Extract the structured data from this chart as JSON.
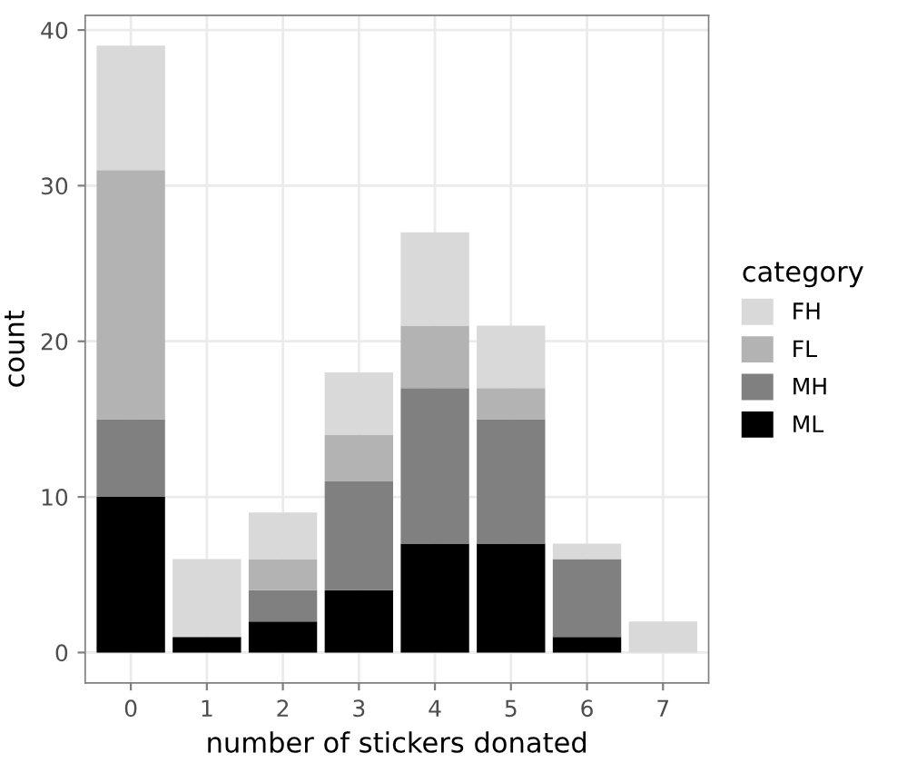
{
  "chart_data": {
    "type": "bar",
    "stacked": true,
    "xlabel": "number of stickers donated",
    "ylabel": "count",
    "legend_title": "category",
    "categories": [
      "0",
      "1",
      "2",
      "3",
      "4",
      "5",
      "6",
      "7"
    ],
    "series": [
      {
        "name": "ML",
        "color": "#000000",
        "values": [
          10,
          1,
          2,
          4,
          7,
          7,
          1,
          0
        ]
      },
      {
        "name": "MH",
        "color": "#808080",
        "values": [
          5,
          0,
          2,
          7,
          10,
          8,
          5,
          0
        ]
      },
      {
        "name": "FL",
        "color": "#b3b3b3",
        "values": [
          16,
          0,
          2,
          3,
          4,
          2,
          0,
          0
        ]
      },
      {
        "name": "FH",
        "color": "#d9d9d9",
        "values": [
          8,
          5,
          3,
          4,
          6,
          4,
          1,
          2
        ]
      }
    ],
    "ylim": [
      -1.95,
      40.95
    ],
    "yticks": [
      0,
      10,
      20,
      30,
      40
    ],
    "grid": true,
    "legend": "right"
  }
}
